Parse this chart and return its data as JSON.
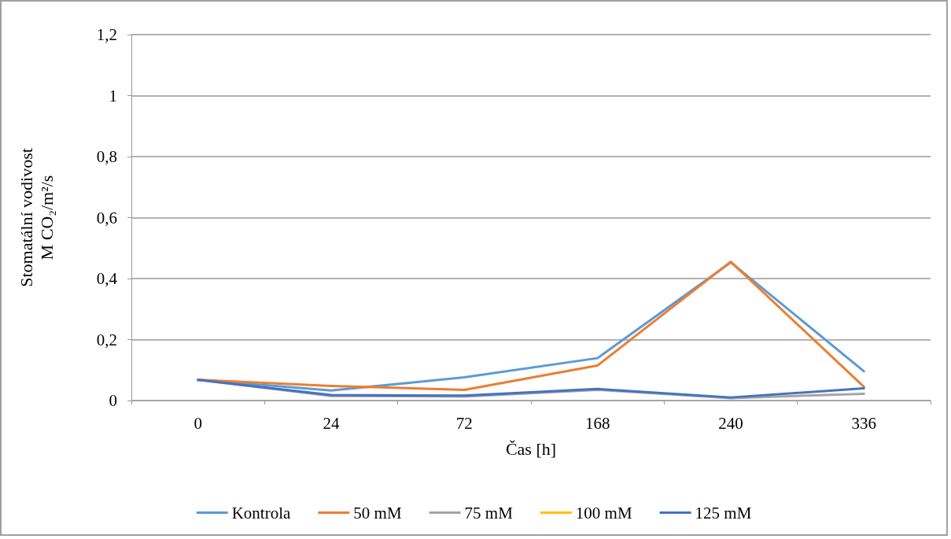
{
  "chart_data": {
    "type": "line",
    "xlabel": "Čas [h]",
    "ylabel": "Stomatální vodivost\nM CO₂/m²/s",
    "categories": [
      "0",
      "24",
      "72",
      "168",
      "240",
      "336"
    ],
    "series": [
      {
        "name": "Kontrola",
        "color": "#5b9bd5",
        "values": [
          0.068,
          0.033,
          0.076,
          0.139,
          0.453,
          0.096
        ]
      },
      {
        "name": "50 mM",
        "color": "#ed7d31",
        "values": [
          0.068,
          0.048,
          0.035,
          0.115,
          0.455,
          0.045
        ]
      },
      {
        "name": "75 mM",
        "color": "#a5a5a5",
        "values": [
          0.068,
          0.015,
          0.013,
          0.035,
          0.008,
          0.022
        ]
      },
      {
        "name": "100 mM",
        "color": "#ffc000",
        "values": [
          null,
          null,
          null,
          null,
          null,
          null
        ]
      },
      {
        "name": "125 mM",
        "color": "#4472c4",
        "values": [
          0.068,
          0.018,
          0.016,
          0.038,
          0.01,
          0.04
        ]
      }
    ],
    "ylim": [
      0,
      1.2
    ],
    "yticks": [
      0,
      {
        "value": 0.2,
        "label": "0,2"
      },
      {
        "value": 0.4,
        "label": "0,4"
      },
      {
        "value": 0.6,
        "label": "0,6"
      },
      {
        "value": 0.8,
        "label": "0,8"
      },
      1,
      {
        "value": 1.2,
        "label": "1,2"
      }
    ],
    "grid": "y",
    "legend": "bottom",
    "marker": "none",
    "line_style": "solid"
  }
}
